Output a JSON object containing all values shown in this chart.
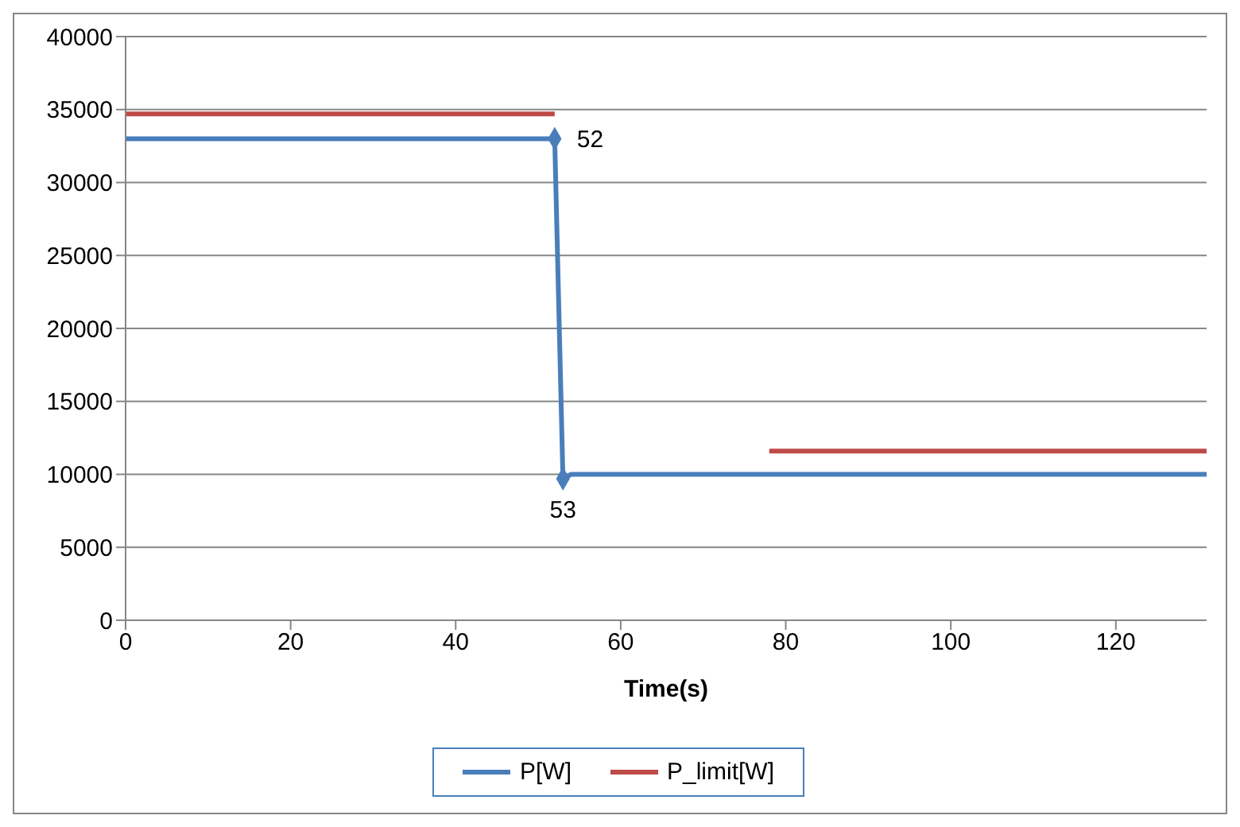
{
  "chart_data": {
    "type": "line",
    "xlabel": "Time(s)",
    "xlim": [
      0,
      131
    ],
    "xticks": [
      0,
      20,
      40,
      60,
      80,
      100,
      120
    ],
    "ylim": [
      0,
      40000
    ],
    "yticks": [
      0,
      5000,
      10000,
      15000,
      20000,
      25000,
      30000,
      35000,
      40000
    ],
    "series": [
      {
        "name": "P[W]",
        "color": "#4a7ebb",
        "x": [
          0,
          52,
          53,
          54,
          131
        ],
        "values": [
          33000,
          33000,
          9700,
          10000,
          10000
        ]
      },
      {
        "name": "P_limit[W]",
        "color": "#be4b48",
        "x": [
          0,
          52
        ],
        "values": [
          34700,
          34700
        ]
      },
      {
        "color": "#be4b48",
        "x": [
          78,
          131
        ],
        "values": [
          11600,
          11600
        ]
      },
      {
        "type": "scatter",
        "color": "#4a7ebb",
        "marker": "diamond",
        "x": [
          52,
          53
        ],
        "values": [
          33000,
          9700
        ]
      }
    ],
    "annotations": [
      {
        "text": "52",
        "x": 52,
        "y": 33000
      },
      {
        "text": "53",
        "x": 53,
        "y": 9700
      }
    ],
    "grid": "y",
    "legend": "bottom",
    "marker": "none"
  }
}
